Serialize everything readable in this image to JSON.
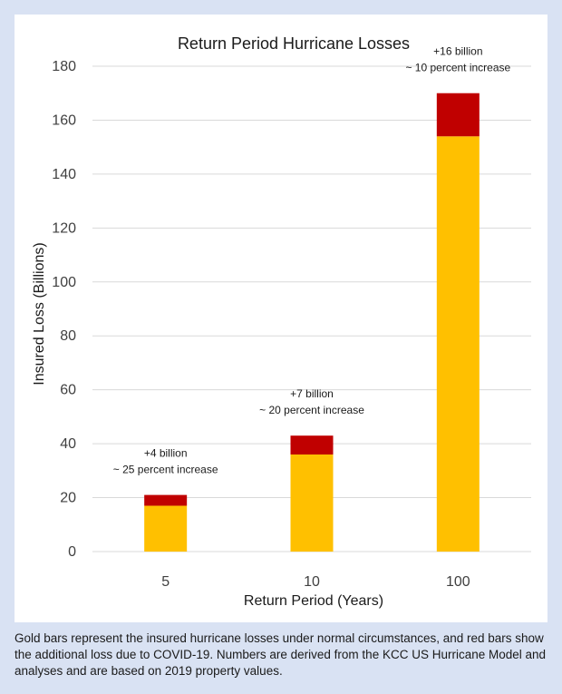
{
  "chart_data": {
    "type": "bar",
    "stacked": true,
    "title": "Return Period Hurricane Losses",
    "xlabel": "Return Period (Years)",
    "ylabel": "Insured Loss (Billions)",
    "ylim": [
      0,
      180
    ],
    "yticks": [
      0,
      20,
      40,
      60,
      80,
      100,
      120,
      140,
      160,
      180
    ],
    "grid": true,
    "legend": "none",
    "categories": [
      "5",
      "10",
      "100"
    ],
    "series": [
      {
        "values": [
          17,
          36,
          154
        ],
        "color": "#ffc000"
      },
      {
        "values": [
          4,
          7,
          16
        ],
        "color": "#c00000"
      }
    ],
    "annotations": [
      {
        "line1": "+4 billion",
        "line2": "~ 25 percent increase"
      },
      {
        "line1": "+7 billion",
        "line2": "~ 20 percent increase"
      },
      {
        "line1": "+16 billion",
        "line2": "~ 10 percent increase"
      }
    ]
  },
  "caption": "Gold bars represent  the insured hurricane losses under normal circumstances, and red bars show the additional loss due to COVID-19.  Numbers are derived from the KCC US Hurricane Model and analyses and are based on 2019 property values."
}
